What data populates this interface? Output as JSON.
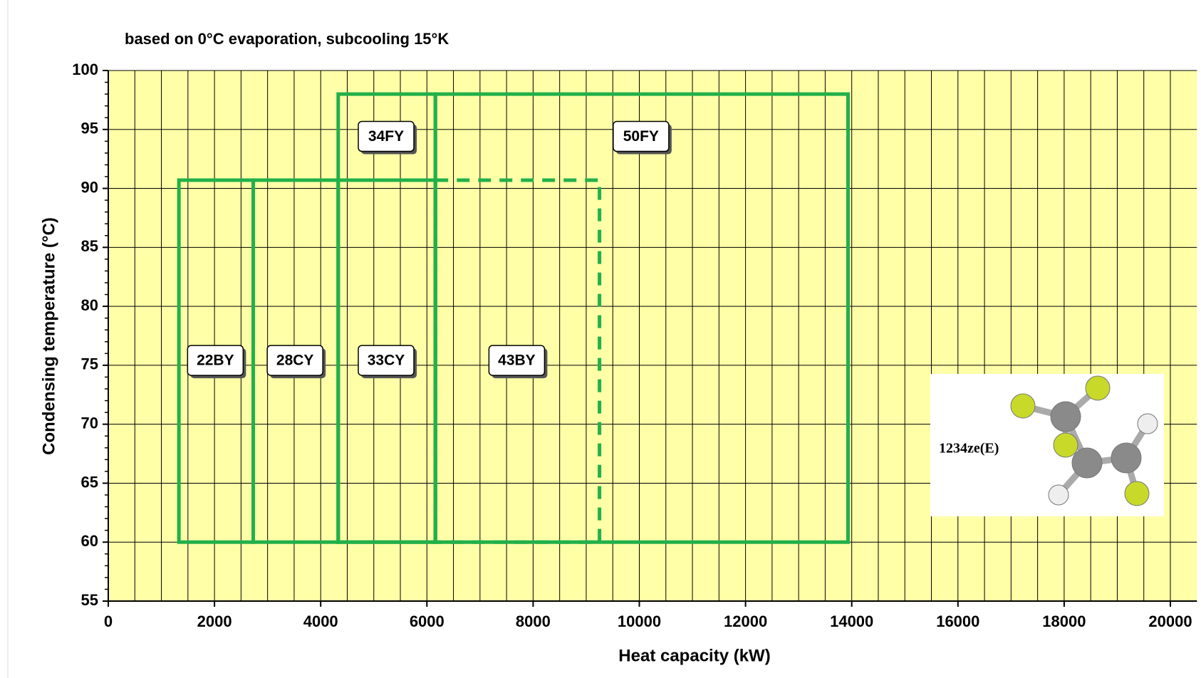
{
  "chart_data": {
    "type": "envelope",
    "subtitle": "based on 0°C evaporation, subcooling 15°K",
    "x_label": "Heat capacity  (kW)",
    "y_label": "Condensing  temperature (°C)",
    "xlim": [
      0,
      20500
    ],
    "ylim": [
      55,
      100
    ],
    "xticks": [
      0,
      2000,
      4000,
      6000,
      8000,
      10000,
      12000,
      14000,
      16000,
      18000,
      20000
    ],
    "yticks": [
      55,
      60,
      65,
      70,
      75,
      80,
      85,
      90,
      95,
      100
    ],
    "x_grid_step": 500,
    "y_minor_step": 1,
    "grid": true,
    "background": "#ffffa8",
    "color": "#22b04a",
    "envelopes": [
      {
        "name": "22BY",
        "x": [
          1330,
          2730
        ],
        "y": [
          60,
          90.7
        ],
        "dashed": false
      },
      {
        "name": "28CY",
        "x": [
          2730,
          4330
        ],
        "y": [
          60,
          90.7
        ],
        "dashed": false
      },
      {
        "name": "33CY",
        "x": [
          4330,
          6160
        ],
        "y": [
          60,
          90.7
        ],
        "dashed": false
      },
      {
        "name": "34FY",
        "x": [
          4330,
          6160
        ],
        "y": [
          60,
          98
        ],
        "dashed": false
      },
      {
        "name": "43BY",
        "x": [
          6160,
          9250
        ],
        "y": [
          60,
          90.7
        ],
        "dashed": true
      },
      {
        "name": "50FY",
        "x": [
          6160,
          13930
        ],
        "y": [
          60,
          98
        ],
        "dashed": false
      }
    ],
    "inset_label": "1234ze(E)"
  }
}
